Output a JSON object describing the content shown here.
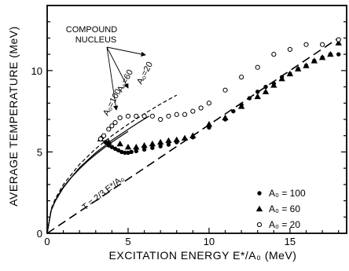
{
  "chart_data": {
    "type": "scatter",
    "title": "",
    "xlabel": "EXCITATION ENERGY E*/A₀ (MeV)",
    "ylabel": "AVERAGE TEMPERATURE (MeV)",
    "xlim": [
      0,
      18.5
    ],
    "ylim": [
      0,
      14
    ],
    "x_ticks": [
      0,
      5,
      10,
      15
    ],
    "y_ticks": [
      0,
      5,
      10
    ],
    "grid": false,
    "legend_position": "lower-right",
    "annotations": {
      "compound_nucleus": "COMPOUND\nNUCLEUS",
      "reference_line": "T = 2/3 E*/A₀",
      "curve_labels": [
        "A₀=100",
        "A₀=60",
        "A₀=20"
      ]
    },
    "curves": [
      {
        "name": "A₀=100",
        "style": "solid",
        "x": [
          0,
          0.25,
          0.5,
          1,
          1.5,
          2,
          2.5,
          3,
          3.5,
          4,
          4.5,
          5
        ],
        "y": [
          0,
          1.4,
          1.98,
          2.8,
          3.43,
          3.96,
          4.43,
          4.85,
          5.24,
          5.6,
          5.94,
          6.26
        ]
      },
      {
        "name": "A₀=60",
        "style": "solid",
        "x": [
          0,
          0.25,
          0.5,
          1,
          2,
          3,
          4,
          5,
          5.7,
          6.3
        ],
        "y": [
          0,
          1.42,
          2.02,
          2.86,
          4.04,
          4.95,
          5.72,
          6.39,
          6.84,
          7.2
        ]
      },
      {
        "name": "A₀=20",
        "style": "dashed",
        "x": [
          0,
          0.25,
          0.5,
          1,
          2,
          3,
          4,
          5,
          6,
          7,
          8
        ],
        "y": [
          0,
          1.5,
          2.12,
          3.0,
          4.24,
          5.2,
          6.0,
          6.7,
          7.35,
          7.94,
          8.49
        ]
      },
      {
        "name": "T=2/3 E*/A₀",
        "style": "long-dash",
        "x": [
          0,
          18
        ],
        "y": [
          0,
          12
        ]
      }
    ],
    "series": [
      {
        "name": "A₀ = 100",
        "marker": "filled-circle",
        "x": [
          3.4,
          3.6,
          3.8,
          4.0,
          4.2,
          4.4,
          4.6,
          4.8,
          5.0,
          5.2,
          5.5,
          6.0,
          6.5,
          7.0,
          7.5,
          8.0,
          9.0,
          10.0,
          11.0,
          11.5,
          12.0,
          12.5,
          13.0,
          13.5,
          14.0,
          14.5,
          15.0,
          15.5,
          16.0,
          16.5,
          17.0,
          17.5,
          18.0
        ],
        "y": [
          5.9,
          5.6,
          5.4,
          5.3,
          5.2,
          5.1,
          5.0,
          4.95,
          4.95,
          5.0,
          5.05,
          5.15,
          5.25,
          5.35,
          5.45,
          5.6,
          5.9,
          6.5,
          7.0,
          7.5,
          7.9,
          8.3,
          8.7,
          9.0,
          9.2,
          9.6,
          9.8,
          10.1,
          10.3,
          10.6,
          10.8,
          11.0,
          11.0
        ]
      },
      {
        "name": "A₀ = 60",
        "marker": "filled-triangle",
        "x": [
          3.3,
          3.8,
          4.5,
          5.0,
          5.5,
          6.0,
          6.5,
          7.0,
          7.5,
          8.0,
          8.5,
          9.0,
          10.0,
          11.0,
          12.0,
          13.0,
          13.5,
          14.0,
          14.5,
          15.0,
          15.5,
          16.0,
          16.5,
          17.0,
          17.5,
          18.0
        ],
        "y": [
          5.8,
          5.6,
          5.5,
          5.3,
          5.3,
          5.4,
          5.5,
          5.6,
          5.7,
          5.75,
          5.85,
          6.0,
          6.7,
          7.1,
          7.8,
          8.4,
          8.7,
          9.1,
          9.5,
          9.8,
          10.1,
          10.3,
          10.6,
          10.8,
          11.0,
          11.7
        ]
      },
      {
        "name": "A₀ = 20",
        "marker": "open-circle",
        "x": [
          3.3,
          3.5,
          3.8,
          4.0,
          4.2,
          4.5,
          5.0,
          5.5,
          6.0,
          6.5,
          7.0,
          7.5,
          8.0,
          8.5,
          9.0,
          9.5,
          10.0,
          11.0,
          12.0,
          13.0,
          14.0,
          15.0,
          16.0,
          17.0,
          18.0
        ],
        "y": [
          5.8,
          6.0,
          6.4,
          6.6,
          6.8,
          7.1,
          7.2,
          7.2,
          7.2,
          7.2,
          7.0,
          7.2,
          7.3,
          7.3,
          7.5,
          7.7,
          8.0,
          8.8,
          9.6,
          10.2,
          11.0,
          11.3,
          11.6,
          11.6,
          11.9
        ]
      }
    ]
  }
}
